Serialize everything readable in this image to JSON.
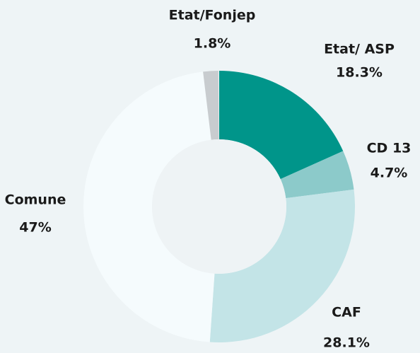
{
  "chart_data": {
    "type": "donut",
    "categories": [
      "Etat/ ASP",
      "CD 13",
      "CAF",
      "Comune",
      "Etat/Fonjep"
    ],
    "values": [
      18.3,
      4.7,
      28.1,
      47,
      1.8
    ],
    "value_labels": [
      "18.3%",
      "4.7%",
      "28.1%",
      "47%",
      "1.8%"
    ],
    "colors": [
      "#00958a",
      "#8ccaca",
      "#c3e4e7",
      "#f5fbfd",
      "#c8cccf"
    ]
  }
}
